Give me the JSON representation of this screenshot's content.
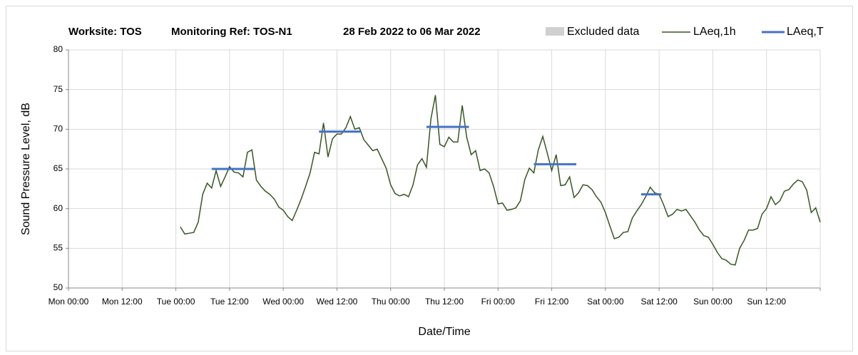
{
  "chart_data": {
    "type": "line",
    "title_parts": [
      "Worksite: TOS",
      "Monitoring Ref: TOS-N1",
      "28 Feb 2022 to 06 Mar 2022"
    ],
    "x_label": "Date/Time",
    "y_label": "Sound Pressure Level, dB",
    "xlim": [
      0,
      168
    ],
    "ylim": [
      50,
      80
    ],
    "xticks": [
      {
        "value": 0,
        "label": "Mon 00:00"
      },
      {
        "value": 12,
        "label": "Mon 12:00"
      },
      {
        "value": 24,
        "label": "Tue 00:00"
      },
      {
        "value": 36,
        "label": "Tue 12:00"
      },
      {
        "value": 48,
        "label": "Wed 00:00"
      },
      {
        "value": 60,
        "label": "Wed 12:00"
      },
      {
        "value": 72,
        "label": "Thu 00:00"
      },
      {
        "value": 84,
        "label": "Thu 12:00"
      },
      {
        "value": 96,
        "label": "Fri 00:00"
      },
      {
        "value": 108,
        "label": "Fri 12:00"
      },
      {
        "value": 120,
        "label": "Sat 00:00"
      },
      {
        "value": 132,
        "label": "Sat 12:00"
      },
      {
        "value": 144,
        "label": "Sun 00:00"
      },
      {
        "value": 156,
        "label": "Sun 12:00"
      },
      {
        "value": 168,
        "label": ""
      }
    ],
    "yticks": [
      50,
      55,
      60,
      65,
      70,
      75,
      80
    ],
    "grid": true,
    "excluded_legend": {
      "name": "Excluded data",
      "color": "#d0d0d0"
    },
    "x": [
      25,
      26,
      27,
      28,
      29,
      30,
      31,
      32,
      33,
      34,
      35,
      36,
      37,
      38,
      39,
      40,
      41,
      42,
      43,
      44,
      45,
      46,
      47,
      48,
      49,
      50,
      51,
      52,
      53,
      54,
      55,
      56,
      57,
      58,
      59,
      60,
      61,
      62,
      63,
      64,
      65,
      66,
      67,
      68,
      69,
      70,
      71,
      72,
      73,
      74,
      75,
      76,
      77,
      78,
      79,
      80,
      81,
      82,
      83,
      84,
      85,
      86,
      87,
      88,
      89,
      90,
      91,
      92,
      93,
      94,
      95,
      96,
      97,
      98,
      99,
      100,
      101,
      102,
      103,
      104,
      105,
      106,
      107,
      108,
      109,
      110,
      111,
      112,
      113,
      114,
      115,
      116,
      117,
      118,
      119,
      120,
      121,
      122,
      123,
      124,
      125,
      126,
      127,
      128,
      129,
      130,
      131,
      132,
      133,
      134,
      135,
      136,
      137,
      138,
      139,
      140,
      141,
      142,
      143,
      144,
      145,
      146,
      147,
      148,
      149,
      150,
      151,
      152,
      153,
      154,
      155,
      156,
      157,
      158,
      159,
      160,
      161,
      162,
      163,
      164,
      165,
      166,
      167,
      168
    ],
    "series": [
      {
        "name": "LAeq,1h",
        "color": "#375623",
        "values": [
          57.7,
          56.8,
          56.9,
          57.0,
          58.3,
          61.8,
          63.2,
          62.6,
          64.8,
          62.8,
          64.0,
          65.3,
          64.6,
          64.5,
          64.0,
          67.1,
          67.4,
          63.6,
          62.8,
          62.2,
          61.8,
          61.2,
          60.2,
          59.8,
          59.0,
          58.5,
          59.8,
          61.2,
          62.8,
          64.5,
          67.1,
          66.9,
          70.8,
          66.5,
          68.8,
          69.4,
          69.4,
          70.2,
          71.6,
          70.0,
          70.2,
          68.7,
          68.0,
          67.3,
          67.5,
          66.3,
          65.1,
          63.0,
          61.9,
          61.6,
          61.8,
          61.5,
          63.0,
          65.5,
          66.3,
          65.2,
          71.3,
          74.3,
          68.1,
          67.8,
          69.0,
          68.4,
          68.4,
          73.0,
          69.0,
          66.8,
          67.3,
          64.8,
          65.0,
          64.5,
          62.8,
          60.6,
          60.7,
          59.8,
          59.9,
          60.1,
          61.0,
          63.7,
          65.1,
          64.5,
          67.4,
          69.1,
          67.0,
          64.8,
          66.8,
          62.9,
          63.0,
          64.0,
          61.4,
          62.0,
          63.0,
          62.9,
          62.4,
          61.5,
          60.8,
          59.5,
          57.8,
          56.2,
          56.4,
          57.0,
          57.1,
          58.8,
          59.7,
          60.5,
          61.5,
          62.7,
          62.0,
          61.8,
          60.5,
          59.0,
          59.3,
          59.9,
          59.7,
          59.9,
          59.1,
          58.3,
          57.3,
          56.6,
          56.4,
          55.5,
          54.5,
          53.7,
          53.5,
          53.0,
          52.9,
          55.0,
          56.0,
          57.3,
          57.3,
          57.5,
          59.3,
          60.0,
          61.5,
          60.5,
          61.0,
          62.2,
          62.4,
          63.1,
          63.6,
          63.4,
          62.3,
          59.5,
          60.1,
          58.3
        ]
      }
    ],
    "periods": {
      "name": "LAeq,T",
      "color": "#4472c4",
      "start": [
        32,
        56,
        80,
        104,
        128
      ],
      "end": [
        41.5,
        65.5,
        89.5,
        113.5,
        132.5
      ],
      "values": [
        65.0,
        69.7,
        70.3,
        65.6,
        61.8
      ]
    }
  }
}
